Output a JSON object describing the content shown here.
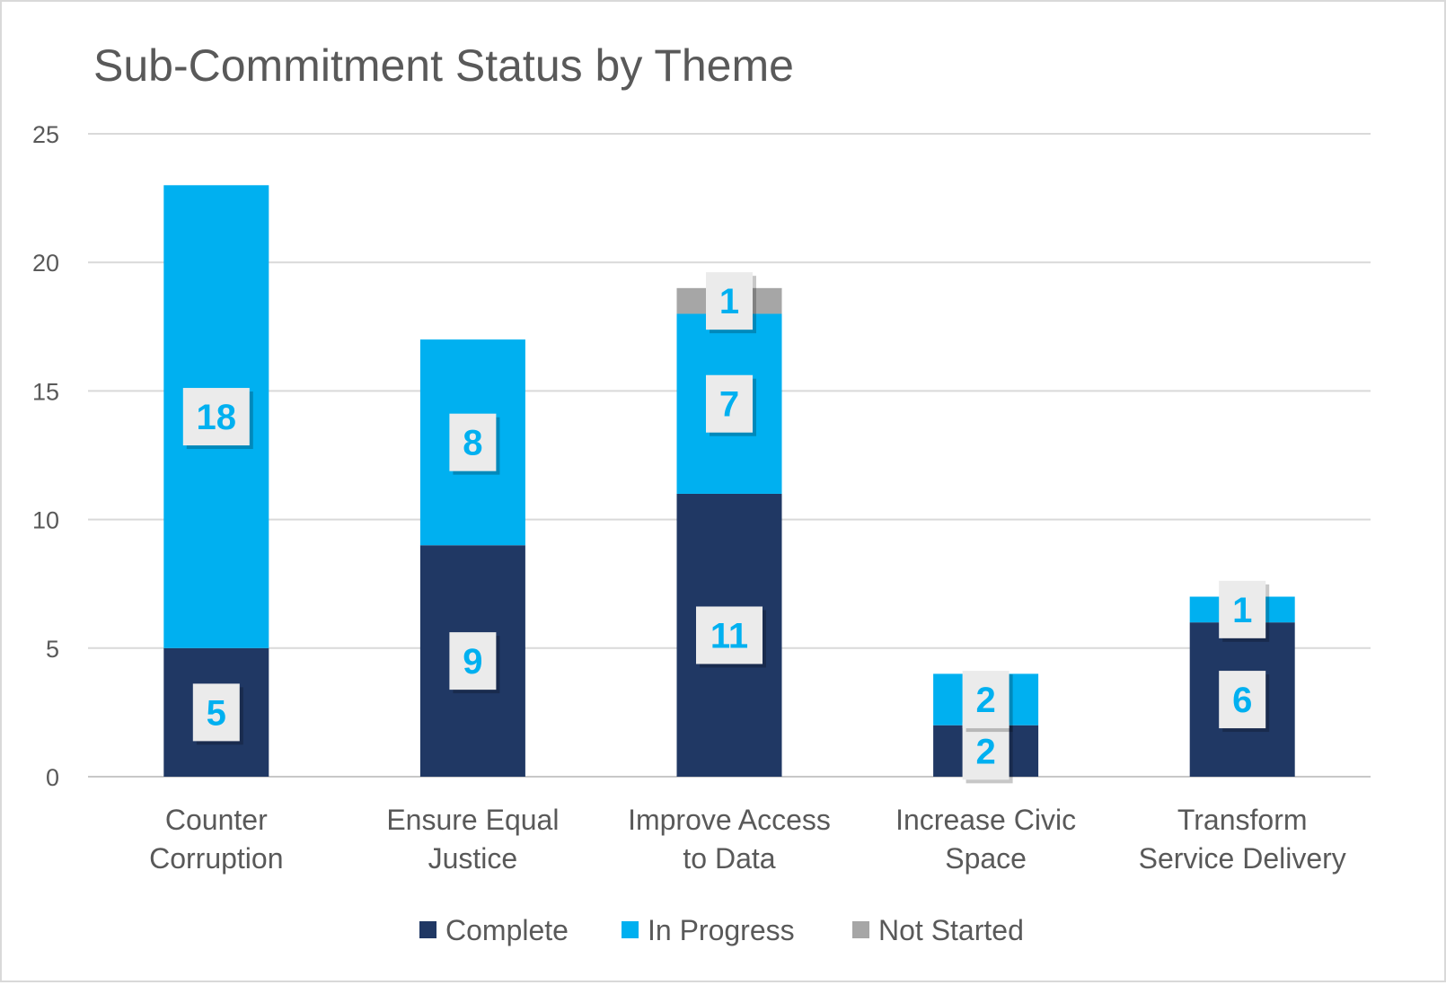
{
  "chart_data": {
    "type": "bar",
    "stacked": true,
    "title": "Sub-Commitment Status by Theme",
    "xlabel": "",
    "ylabel": "",
    "ylim": [
      0,
      25
    ],
    "yticks": [
      0,
      5,
      10,
      15,
      20,
      25
    ],
    "grid": true,
    "legend_position": "bottom",
    "categories": [
      [
        "Counter",
        "Corruption"
      ],
      [
        "Ensure Equal",
        "Justice"
      ],
      [
        "Improve Access",
        "to Data"
      ],
      [
        "Increase Civic",
        "Space"
      ],
      [
        "Transform",
        "Service Delivery"
      ]
    ],
    "series": [
      {
        "name": "Complete",
        "color": "#203864",
        "values": [
          5,
          9,
          11,
          2,
          6
        ]
      },
      {
        "name": "In Progress",
        "color": "#00b0f0",
        "values": [
          18,
          8,
          7,
          2,
          1
        ]
      },
      {
        "name": "Not Started",
        "color": "#a6a6a6",
        "values": [
          0,
          0,
          1,
          0,
          0
        ]
      }
    ],
    "data_label_color": "#00b0f0",
    "data_label_box": "#ebebeb"
  }
}
